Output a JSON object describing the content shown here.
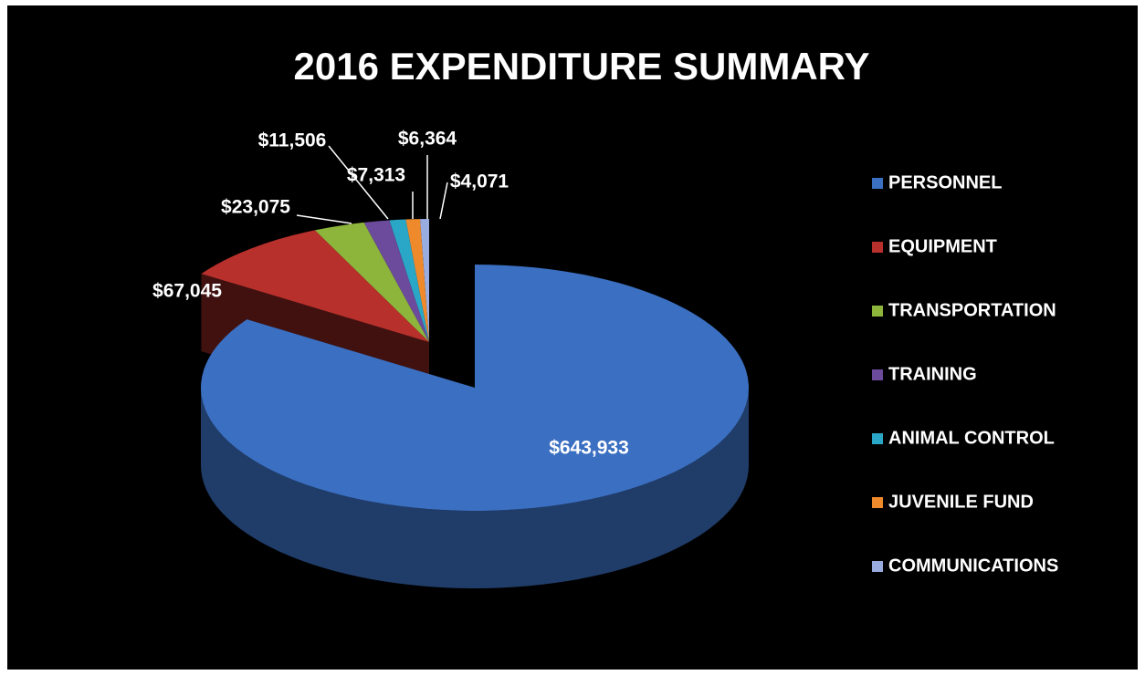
{
  "chart_data": {
    "type": "pie",
    "title": "2016 EXPENDITURE SUMMARY",
    "categories": [
      "PERSONNEL",
      "EQUIPMENT",
      "TRANSPORTATION",
      "TRAINING",
      "ANIMAL CONTROL",
      "JUVENILE FUND",
      "COMMUNICATIONS"
    ],
    "values": [
      643933,
      67045,
      23075,
      11506,
      7313,
      6364,
      4071
    ],
    "value_labels": [
      "$643,933",
      "$67,045",
      "$23,075",
      "$11,506",
      "$7,313",
      "$6,364",
      "$4,071"
    ],
    "colors": [
      "#3b6fc1",
      "#b8302c",
      "#8db53c",
      "#6c4a9c",
      "#2aa7c6",
      "#ef8a2c",
      "#98acdf"
    ],
    "legend": "right"
  }
}
